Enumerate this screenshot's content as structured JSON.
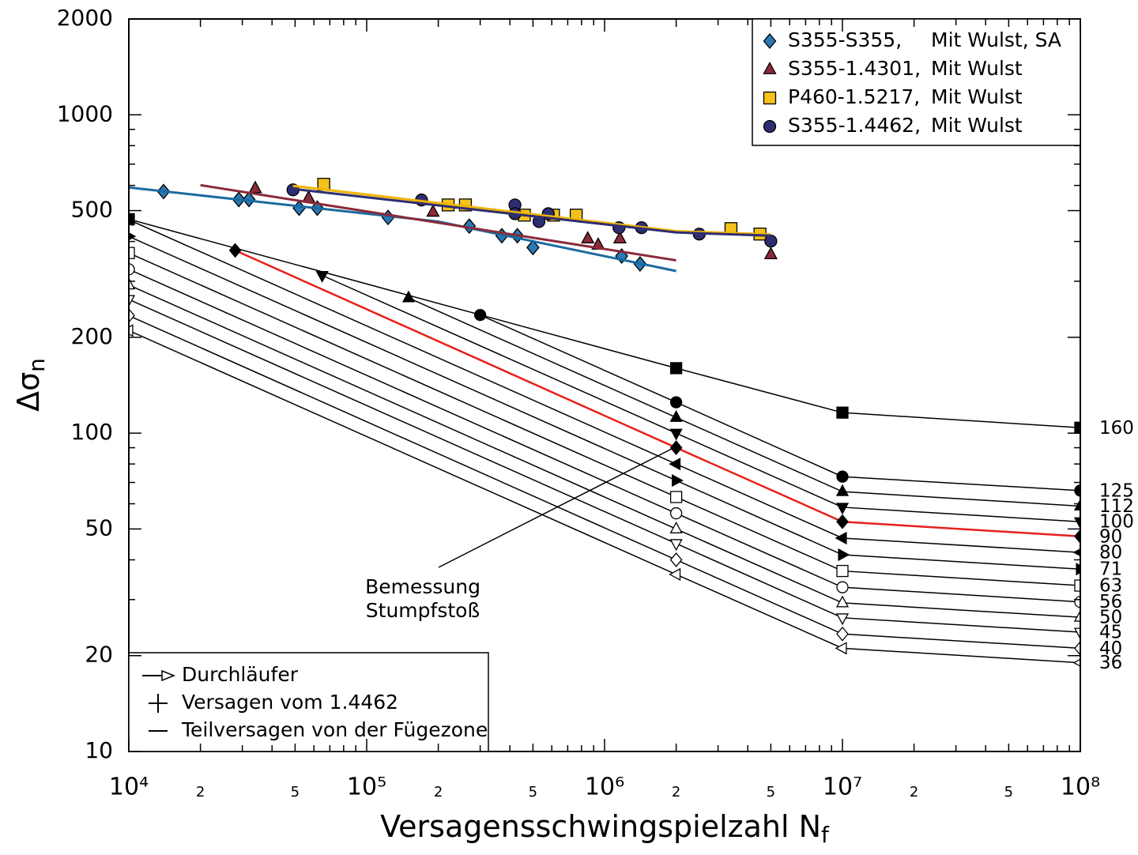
{
  "chart_data": {
    "type": "line",
    "log_x": true,
    "log_y": true,
    "x_label": {
      "text": "Versagensschwingspielzahl N",
      "sub": "f"
    },
    "y_label": {
      "text": "Δσ",
      "sub": "n"
    },
    "xlim": [
      10000,
      100000000
    ],
    "ylim": [
      10,
      2000
    ],
    "xticks": [
      {
        "value": 10000,
        "label": "10⁴"
      },
      {
        "value": 20000,
        "label": "2"
      },
      {
        "value": 50000,
        "label": "5"
      },
      {
        "value": 100000,
        "label": "10⁵"
      },
      {
        "value": 200000,
        "label": "2"
      },
      {
        "value": 500000,
        "label": "5"
      },
      {
        "value": 1000000,
        "label": "10⁶"
      },
      {
        "value": 2000000,
        "label": "2"
      },
      {
        "value": 5000000,
        "label": "5"
      },
      {
        "value": 10000000,
        "label": "10⁷"
      },
      {
        "value": 20000000,
        "label": "2"
      },
      {
        "value": 50000000,
        "label": "5"
      },
      {
        "value": 100000000,
        "label": "10⁸"
      }
    ],
    "minor_xticks": [
      30000,
      40000,
      60000,
      70000,
      80000,
      90000,
      300000,
      400000,
      600000,
      700000,
      800000,
      900000,
      3000000,
      4000000,
      6000000,
      7000000,
      8000000,
      9000000,
      30000000,
      40000000,
      60000000,
      70000000,
      80000000,
      90000000
    ],
    "yticks": [
      10,
      20,
      50,
      100,
      200,
      500,
      1000,
      2000
    ],
    "minor_yticks": [
      30,
      40,
      60,
      70,
      80,
      90,
      300,
      400,
      600,
      700,
      800,
      900
    ],
    "detail_series": [
      {
        "name": "160",
        "color": "#000000",
        "marker": "square",
        "filled": true,
        "x": [
          10000,
          2000000,
          10000000,
          100000000
        ],
        "values": [
          470,
          160,
          116,
          104
        ]
      },
      {
        "name": "125",
        "color": "#000000",
        "marker": "circle",
        "filled": true,
        "x": [
          300000,
          2000000,
          10000000,
          100000000
        ],
        "values": [
          235,
          125,
          73,
          66
        ]
      },
      {
        "name": "112",
        "color": "#000000",
        "marker": "triangle-up",
        "filled": true,
        "x": [
          150000,
          2000000,
          10000000,
          100000000
        ],
        "values": [
          266,
          112,
          65.5,
          59
        ]
      },
      {
        "name": "100",
        "color": "#000000",
        "marker": "triangle-down",
        "filled": true,
        "x": [
          65000,
          2000000,
          10000000,
          100000000
        ],
        "values": [
          313,
          100,
          58.5,
          52.7
        ]
      },
      {
        "name": "90",
        "color": "#e8201a",
        "marker": "diamond",
        "filled": true,
        "x": [
          28000,
          2000000,
          10000000,
          100000000
        ],
        "values": [
          375,
          90,
          52.7,
          47.4
        ]
      },
      {
        "name": "80",
        "color": "#000000",
        "marker": "triangle-left",
        "filled": true,
        "x": [
          10000,
          2000000,
          10000000,
          100000000
        ],
        "values": [
          468,
          80,
          46.8,
          42.2
        ]
      },
      {
        "name": "71",
        "color": "#000000",
        "marker": "triangle-right",
        "filled": true,
        "x": [
          10000,
          2000000,
          10000000,
          100000000
        ],
        "values": [
          415,
          71,
          41.5,
          37.4
        ]
      },
      {
        "name": "63",
        "color": "#000000",
        "marker": "square",
        "filled": false,
        "x": [
          10000,
          2000000,
          10000000,
          100000000
        ],
        "values": [
          368,
          63,
          36.9,
          33.2
        ]
      },
      {
        "name": "56",
        "color": "#000000",
        "marker": "circle",
        "filled": false,
        "x": [
          10000,
          2000000,
          10000000,
          100000000
        ],
        "values": [
          327,
          56,
          32.8,
          29.5
        ]
      },
      {
        "name": "50",
        "color": "#000000",
        "marker": "triangle-up",
        "filled": false,
        "x": [
          10000,
          2000000,
          10000000,
          100000000
        ],
        "values": [
          292,
          50,
          29.3,
          26.4
        ]
      },
      {
        "name": "45",
        "color": "#000000",
        "marker": "triangle-down",
        "filled": false,
        "x": [
          10000,
          2000000,
          10000000,
          100000000
        ],
        "values": [
          263,
          45,
          26.3,
          23.7
        ]
      },
      {
        "name": "40",
        "color": "#000000",
        "marker": "diamond",
        "filled": false,
        "x": [
          10000,
          2000000,
          10000000,
          100000000
        ],
        "values": [
          234,
          40,
          23.4,
          21.1
        ]
      },
      {
        "name": "36",
        "color": "#000000",
        "marker": "triangle-left",
        "filled": false,
        "x": [
          10000,
          2000000,
          10000000,
          100000000
        ],
        "values": [
          210,
          36,
          21.1,
          19
        ]
      }
    ],
    "series": [
      {
        "name": "S355-S355,",
        "detail": "Mit Wulst, SA",
        "color": "#2a78b4",
        "marker": "diamond",
        "x": [
          14000,
          29000,
          32000,
          52000,
          62000,
          123000,
          270000,
          370000,
          430000,
          500000,
          1180000,
          1410000
        ],
        "values": [
          574,
          542,
          542,
          509,
          509,
          476,
          447,
          417,
          417,
          383,
          360,
          340
        ],
        "fit": {
          "color": "#1a6aa0",
          "x": [
            10000,
            200000,
            2000000
          ],
          "values": [
            591,
            462,
            323
          ]
        }
      },
      {
        "name": "S355-1.4301,",
        "detail": "Mit Wulst",
        "color": "#8b2a3a",
        "marker": "triangle-up",
        "x": [
          34000,
          57000,
          190000,
          850000,
          940000,
          1160000,
          5000000
        ],
        "values": [
          587,
          548,
          495,
          408,
          390,
          408,
          364
        ],
        "fit": {
          "color": "#8b2a3a",
          "x": [
            20000,
            2000000
          ],
          "values": [
            601,
            349
          ]
        }
      },
      {
        "name": "P460-1.5217,",
        "detail": "Mit Wulst",
        "color": "#f5c21b",
        "marker": "square",
        "x": [
          66000,
          220000,
          260000,
          460000,
          610000,
          760000,
          3400000,
          4500000
        ],
        "values": [
          605,
          521,
          521,
          484,
          484,
          484,
          439,
          422
        ],
        "fit": {
          "color": "#f0b400",
          "x": [
            49000,
            2000000,
            5000000
          ],
          "values": [
            598,
            431,
            421
          ]
        }
      },
      {
        "name": "S355-1.4462,",
        "detail": "Mit Wulst",
        "color": "#2e2e72",
        "marker": "circle",
        "x": [
          49000,
          170000,
          420000,
          420000,
          580000,
          530000,
          1150000,
          1430000,
          2500000,
          5000000
        ],
        "values": [
          581,
          540,
          521,
          489,
          489,
          462,
          442,
          442,
          422,
          401
        ],
        "fit": {
          "color": "#2e2e72",
          "x": [
            49000,
            2000000,
            5000000
          ],
          "values": [
            585,
            427,
            417
          ]
        }
      }
    ],
    "annotation": [
      "Bemessung",
      "Stumpfstoß"
    ],
    "symbol_legend": [
      "Durchläufer",
      "Versagen vom 1.4462",
      "Teilversagen von der Fügezone"
    ]
  }
}
